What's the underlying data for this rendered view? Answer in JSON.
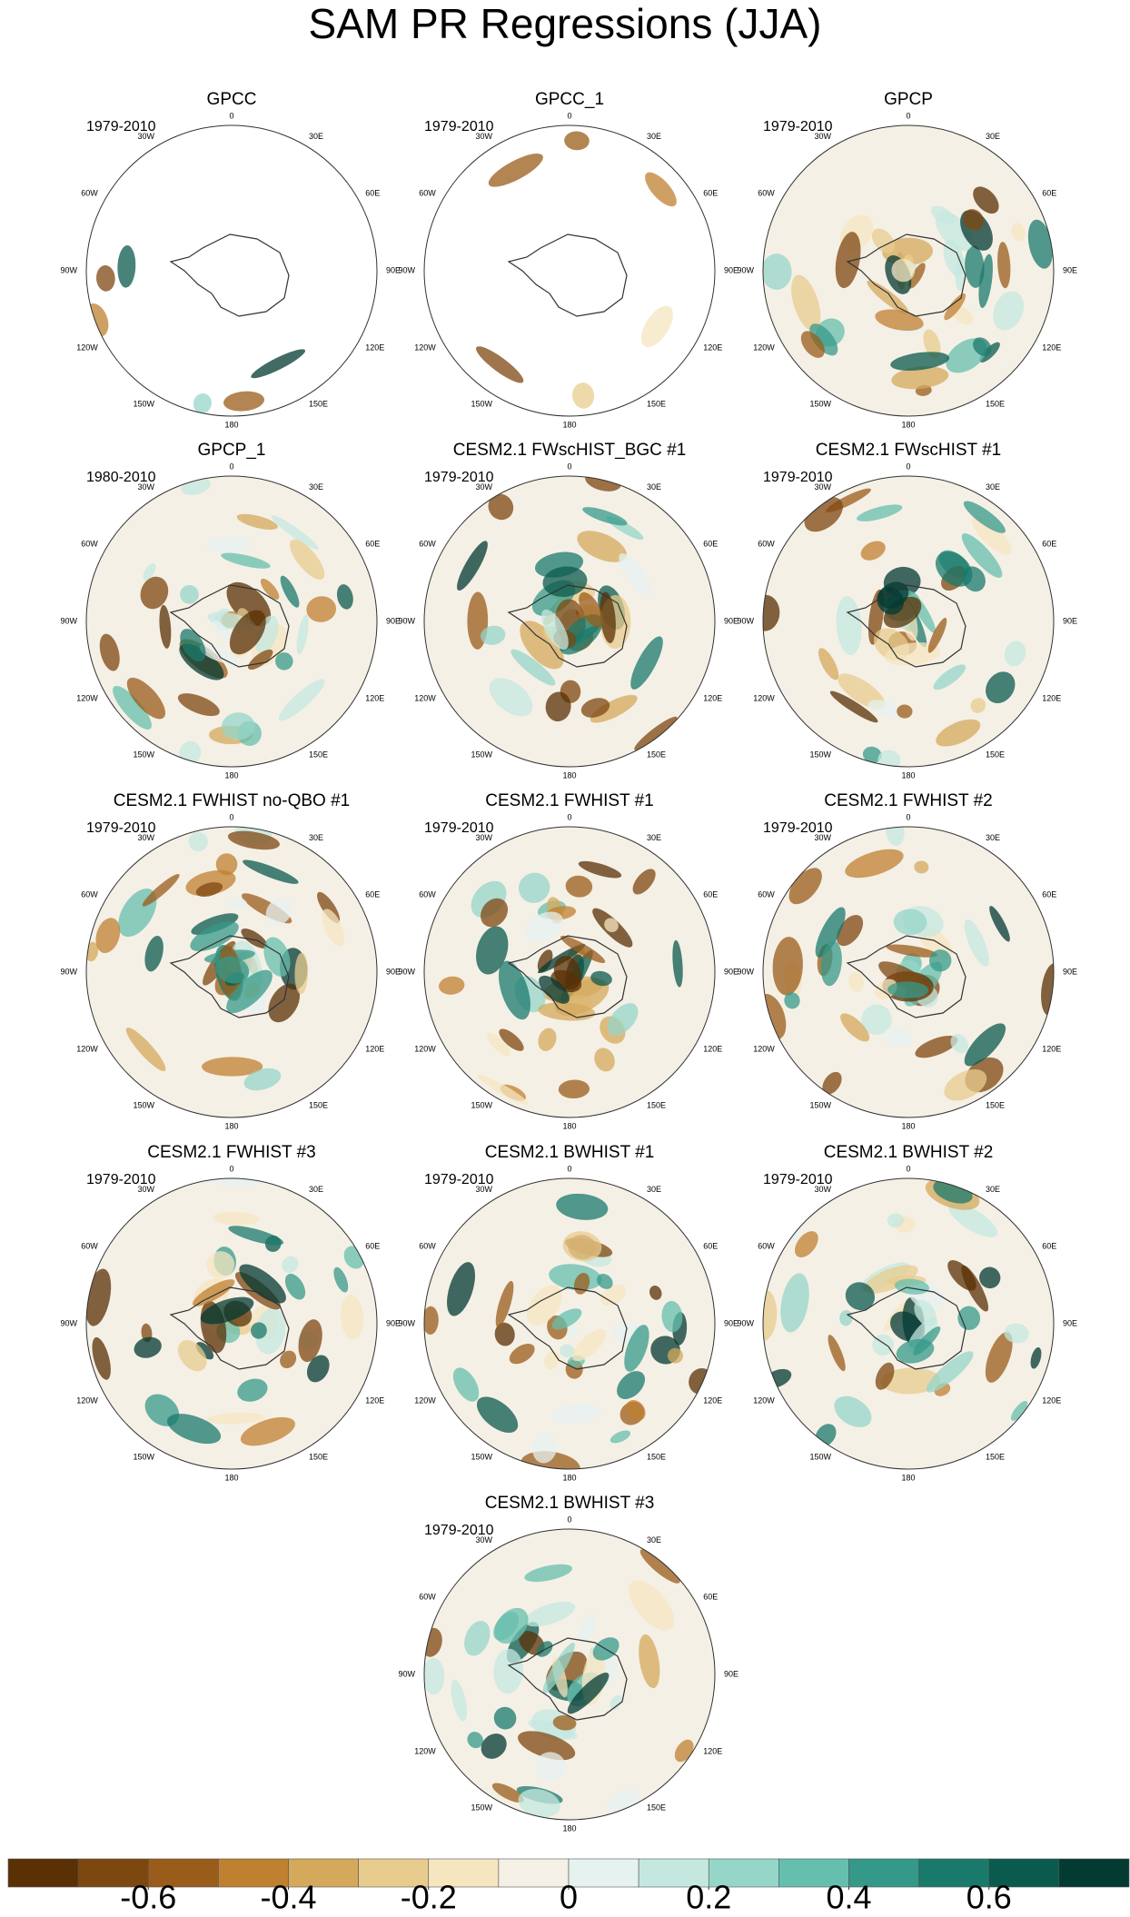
{
  "title": "SAM PR Regressions (JJA)",
  "longitude_labels": [
    "0",
    "30E",
    "60E",
    "90E",
    "120E",
    "150E",
    "180",
    "150W",
    "120W",
    "90W",
    "60W",
    "30W"
  ],
  "panels": [
    {
      "title": "GPCC",
      "period": "1979-2010"
    },
    {
      "title": "GPCC_1",
      "period": "1979-2010"
    },
    {
      "title": "GPCP",
      "period": "1979-2010"
    },
    {
      "title": "GPCP_1",
      "period": "1980-2010"
    },
    {
      "title": "CESM2.1 FWscHIST_BGC #1",
      "period": "1979-2010"
    },
    {
      "title": "CESM2.1 FWscHIST #1",
      "period": "1979-2010"
    },
    {
      "title": "CESM2.1 FWHIST no-QBO #1",
      "period": "1979-2010"
    },
    {
      "title": "CESM2.1 FWHIST #1",
      "period": "1979-2010"
    },
    {
      "title": "CESM2.1 FWHIST #2",
      "period": "1979-2010"
    },
    {
      "title": "CESM2.1 FWHIST #3",
      "period": "1979-2010"
    },
    {
      "title": "CESM2.1 BWHIST #1",
      "period": "1979-2010"
    },
    {
      "title": "CESM2.1 BWHIST #2",
      "period": "1979-2010"
    },
    {
      "title": "CESM2.1 BWHIST #3",
      "period": "1979-2010"
    }
  ],
  "colorbar": {
    "xlim": [
      -0.8,
      0.8
    ],
    "xticks": [
      -0.6,
      -0.4,
      -0.2,
      0,
      0.2,
      0.4,
      0.6
    ],
    "colors": [
      "#5a3005",
      "#7d4710",
      "#9a5c1a",
      "#bf8030",
      "#d4a95c",
      "#e8cc8e",
      "#f5e6c0",
      "#f5f0e6",
      "#e6f2f0",
      "#c4e8e0",
      "#96d6c8",
      "#66bfae",
      "#35998a",
      "#197a6c",
      "#0b5a4e",
      "#033a32"
    ]
  }
}
